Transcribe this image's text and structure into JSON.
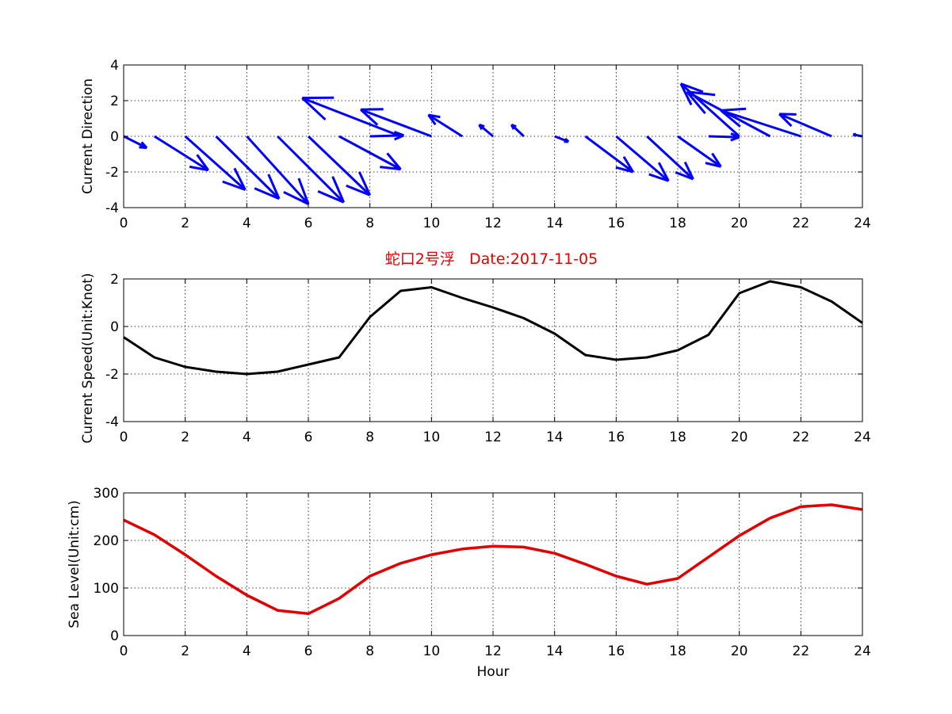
{
  "colors": {
    "direction": "#0000ff",
    "speed": "#000000",
    "sea_level": "#e00000",
    "title": "#e00000"
  },
  "chart_data": [
    {
      "type": "quiver",
      "ylabel": "Current Direction",
      "xlabel": "",
      "xlim": [
        0,
        24
      ],
      "ylim": [
        -4,
        4
      ],
      "xticks": [
        0,
        2,
        4,
        6,
        8,
        10,
        12,
        14,
        16,
        18,
        20,
        22,
        24
      ],
      "yticks": [
        -4,
        -2,
        0,
        2,
        4
      ],
      "grid": true,
      "arrows": [
        {
          "x": 0,
          "u": 0.75,
          "v": -0.65
        },
        {
          "x": 1,
          "u": 1.75,
          "v": -1.9
        },
        {
          "x": 2,
          "u": 1.95,
          "v": -3.0
        },
        {
          "x": 3,
          "u": 2.05,
          "v": -3.5
        },
        {
          "x": 4,
          "u": 2.0,
          "v": -3.8
        },
        {
          "x": 5,
          "u": 2.15,
          "v": -3.7
        },
        {
          "x": 6,
          "u": 2.0,
          "v": -3.3
        },
        {
          "x": 7,
          "u": 2.0,
          "v": -1.85
        },
        {
          "x": 8,
          "u": 1.1,
          "v": 0.05
        },
        {
          "x": 9,
          "u": -3.2,
          "v": 2.15
        },
        {
          "x": 10,
          "u": -2.3,
          "v": 1.5
        },
        {
          "x": 11,
          "u": -1.1,
          "v": 1.2
        },
        {
          "x": 12,
          "u": -0.45,
          "v": 0.65
        },
        {
          "x": 13,
          "u": -0.4,
          "v": 0.65
        },
        {
          "x": 14,
          "u": 0.45,
          "v": -0.3
        },
        {
          "x": 15,
          "u": 1.55,
          "v": -2.0
        },
        {
          "x": 16,
          "u": 1.7,
          "v": -2.5
        },
        {
          "x": 17,
          "u": 1.5,
          "v": -2.4
        },
        {
          "x": 18,
          "u": 1.4,
          "v": -1.7
        },
        {
          "x": 19,
          "u": 1.0,
          "v": -0.05
        },
        {
          "x": 20,
          "u": -1.9,
          "v": 2.95
        },
        {
          "x": 21,
          "u": -2.7,
          "v": 2.5
        },
        {
          "x": 22,
          "u": -2.6,
          "v": 1.45
        },
        {
          "x": 23,
          "u": -1.7,
          "v": 1.25
        },
        {
          "x": 24,
          "u": -0.3,
          "v": 0.1
        }
      ]
    },
    {
      "type": "line",
      "title": "蛇口2号浮   Date:2017-11-05",
      "ylabel": "Current Speed(Unit:Knot)",
      "xlabel": "",
      "xlim": [
        0,
        24
      ],
      "ylim": [
        -4,
        2
      ],
      "xticks": [
        0,
        2,
        4,
        6,
        8,
        10,
        12,
        14,
        16,
        18,
        20,
        22,
        24
      ],
      "yticks": [
        -4,
        -2,
        0,
        2
      ],
      "grid": true,
      "x": [
        0,
        1,
        2,
        3,
        4,
        5,
        6,
        7,
        8,
        9,
        10,
        11,
        12,
        13,
        14,
        15,
        16,
        17,
        18,
        19,
        20,
        21,
        22,
        23,
        24
      ],
      "y": [
        -0.45,
        -1.3,
        -1.7,
        -1.9,
        -2.0,
        -1.9,
        -1.6,
        -1.3,
        0.4,
        1.5,
        1.65,
        1.2,
        0.8,
        0.35,
        -0.3,
        -1.2,
        -1.4,
        -1.3,
        -1.0,
        -0.35,
        1.4,
        1.9,
        1.65,
        1.05,
        0.15
      ]
    },
    {
      "type": "line",
      "ylabel": "Sea Level(Unit:cm)",
      "xlabel": "Hour",
      "xlim": [
        0,
        24
      ],
      "ylim": [
        0,
        300
      ],
      "xticks": [
        0,
        2,
        4,
        6,
        8,
        10,
        12,
        14,
        16,
        18,
        20,
        22,
        24
      ],
      "yticks": [
        0,
        100,
        200,
        300
      ],
      "grid": true,
      "x": [
        0,
        1,
        2,
        3,
        4,
        5,
        6,
        7,
        8,
        9,
        10,
        11,
        12,
        13,
        14,
        15,
        16,
        17,
        18,
        19,
        20,
        21,
        22,
        23,
        24
      ],
      "y": [
        243,
        212,
        170,
        125,
        85,
        53,
        46,
        78,
        125,
        152,
        170,
        182,
        188,
        186,
        173,
        150,
        125,
        108,
        120,
        165,
        210,
        247,
        271,
        275,
        265
      ]
    }
  ]
}
